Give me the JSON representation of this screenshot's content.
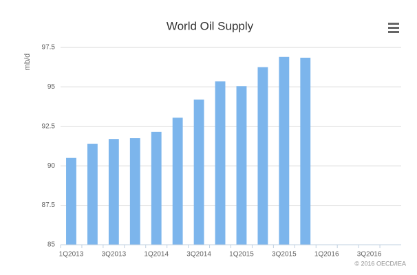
{
  "chart_data": {
    "type": "bar",
    "title": "World Oil Supply",
    "y_label": "mb/d",
    "credit": "© 2016 OECD/IEA",
    "categories": [
      "1Q2013",
      null,
      "3Q2013",
      null,
      "1Q2014",
      null,
      "3Q2014",
      null,
      "1Q2015",
      null,
      "3Q2015",
      null,
      "1Q2016",
      null,
      "3Q2016",
      null
    ],
    "values": [
      90.5,
      91.4,
      91.7,
      91.75,
      92.15,
      93.05,
      94.2,
      95.35,
      95.05,
      96.25,
      96.9,
      96.85,
      null,
      null,
      null,
      null
    ],
    "color": "#7cb5ec",
    "ylim": [
      85,
      97.5
    ],
    "yticks": [
      85,
      87.5,
      90,
      92.5,
      95,
      97.5
    ],
    "grid": true
  }
}
